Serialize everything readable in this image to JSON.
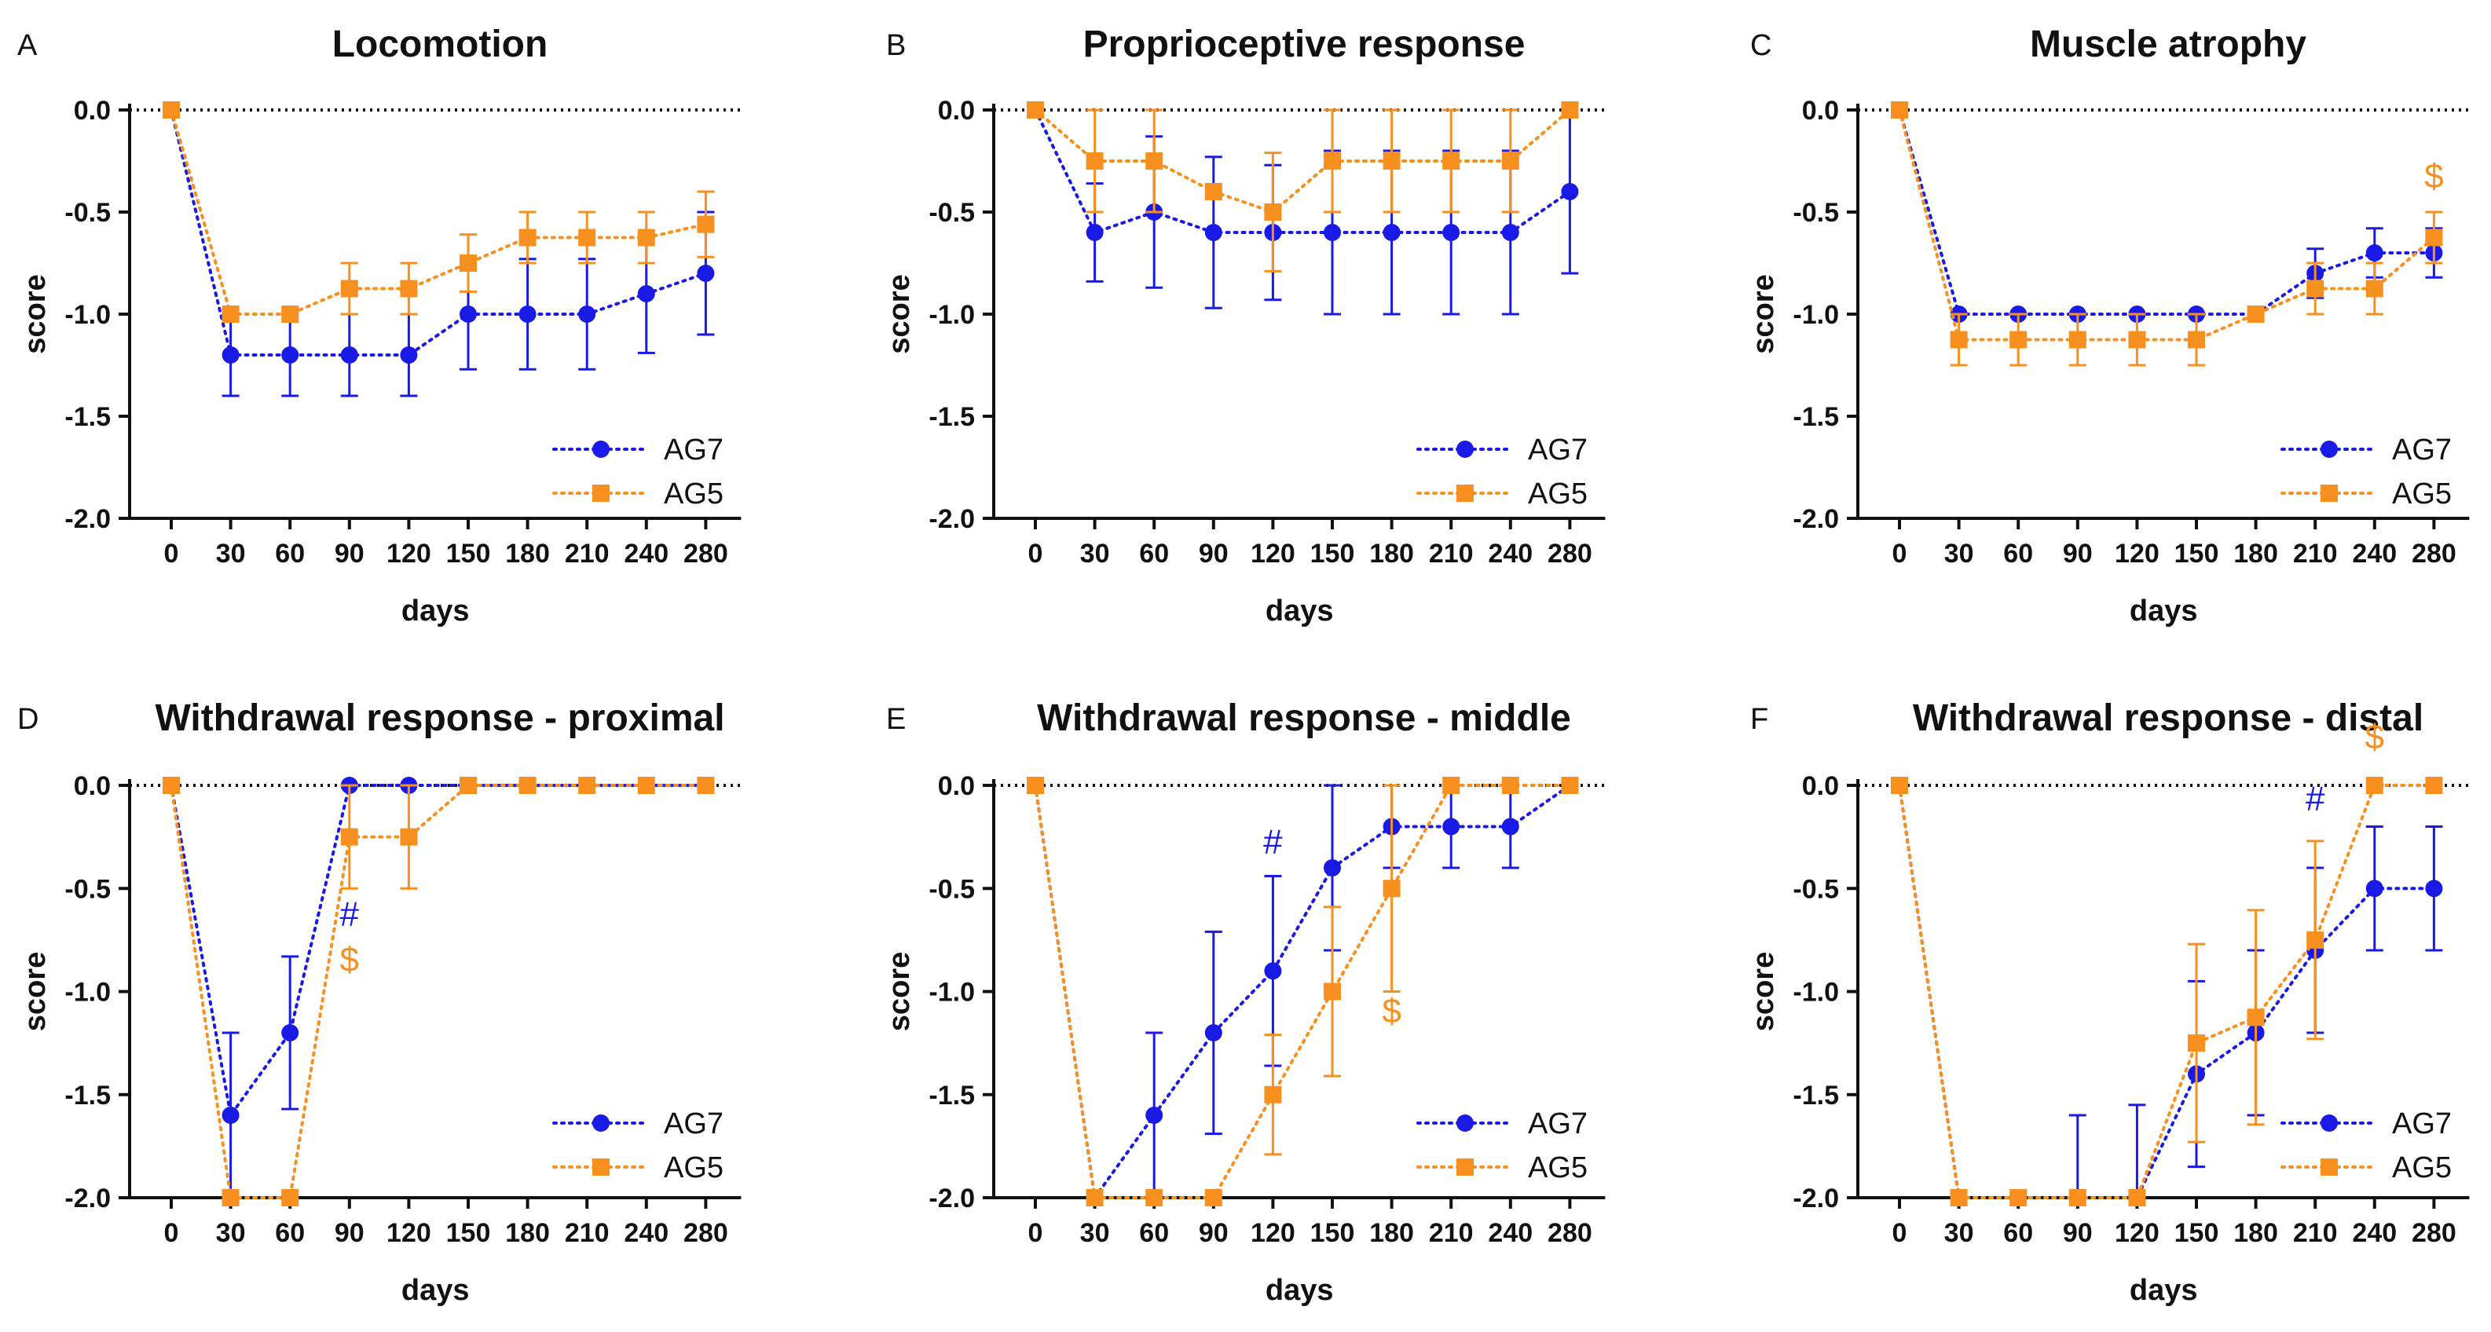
{
  "colors": {
    "AG7": "#1a1ae6",
    "AG5": "#f7901e",
    "axis": "#111111"
  },
  "shared": {
    "x_label": "days",
    "y_label": "score",
    "x_ticks": [
      "0",
      "30",
      "60",
      "90",
      "120",
      "150",
      "180",
      "210",
      "240",
      "280"
    ],
    "y_ticks": [
      0,
      -0.5,
      -1.0,
      -1.5,
      -2.0
    ],
    "y_tick_labels": [
      "0.0",
      "-0.5",
      "-1.0",
      "-1.5",
      "-2.0"
    ],
    "ylim": [
      -2.0,
      0.0
    ]
  },
  "chart_data": [
    {
      "panel": "A",
      "title": "Locomotion",
      "type": "line",
      "xlabel": "days",
      "ylabel": "score",
      "ylim": [
        -2.0,
        0.0
      ],
      "categories": [
        "0",
        "30",
        "60",
        "90",
        "120",
        "150",
        "180",
        "210",
        "240",
        "280"
      ],
      "series": [
        {
          "name": "AG7",
          "values": [
            0,
            -1.2,
            -1.2,
            -1.2,
            -1.2,
            -1.0,
            -1.0,
            -1.0,
            -0.9,
            -0.8
          ],
          "err": [
            0,
            0.2,
            0.2,
            0.2,
            0.2,
            0.27,
            0.27,
            0.27,
            0.29,
            0.3
          ]
        },
        {
          "name": "AG5",
          "values": [
            0,
            -1.0,
            -1.0,
            -0.875,
            -0.875,
            -0.75,
            -0.625,
            -0.625,
            -0.625,
            -0.56
          ],
          "err": [
            0,
            0,
            0,
            0.125,
            0.125,
            0.14,
            0.125,
            0.125,
            0.125,
            0.16
          ]
        }
      ],
      "annotations": []
    },
    {
      "panel": "B",
      "title": "Proprioceptive response",
      "type": "line",
      "xlabel": "days",
      "ylabel": "score",
      "ylim": [
        -2.0,
        0.0
      ],
      "categories": [
        "0",
        "30",
        "60",
        "90",
        "120",
        "150",
        "180",
        "210",
        "240",
        "280"
      ],
      "series": [
        {
          "name": "AG7",
          "values": [
            0,
            -0.6,
            -0.5,
            -0.6,
            -0.6,
            -0.6,
            -0.6,
            -0.6,
            -0.6,
            -0.4
          ],
          "err": [
            0,
            0.24,
            0.37,
            0.37,
            0.33,
            0.4,
            0.4,
            0.4,
            0.4,
            0.4
          ]
        },
        {
          "name": "AG5",
          "values": [
            0,
            -0.25,
            -0.25,
            -0.4,
            -0.5,
            -0.25,
            -0.25,
            -0.25,
            -0.25,
            0
          ],
          "err": [
            0,
            0.25,
            0.25,
            0,
            0.29,
            0.25,
            0.25,
            0.25,
            0.25,
            0
          ]
        }
      ],
      "annotations": []
    },
    {
      "panel": "C",
      "title": "Muscle atrophy",
      "type": "line",
      "xlabel": "days",
      "ylabel": "score",
      "ylim": [
        -2.0,
        0.0
      ],
      "categories": [
        "0",
        "30",
        "60",
        "90",
        "120",
        "150",
        "180",
        "210",
        "240",
        "280"
      ],
      "series": [
        {
          "name": "AG7",
          "values": [
            0,
            -1.0,
            -1.0,
            -1.0,
            -1.0,
            -1.0,
            -1.0,
            -0.8,
            -0.7,
            -0.7
          ],
          "err": [
            0,
            0,
            0,
            0,
            0,
            0,
            0,
            0.12,
            0.12,
            0.12
          ]
        },
        {
          "name": "AG5",
          "values": [
            0,
            -1.125,
            -1.125,
            -1.125,
            -1.125,
            -1.125,
            -1.0,
            -0.875,
            -0.875,
            -0.625
          ],
          "err": [
            0,
            0.125,
            0.125,
            0.125,
            0.125,
            0.125,
            0,
            0.125,
            0.125,
            0.125
          ]
        }
      ],
      "annotations": [
        {
          "text": "$",
          "series": "AG5",
          "category": "280",
          "y": -0.38
        }
      ]
    },
    {
      "panel": "D",
      "title": "Withdrawal response - proximal",
      "type": "line",
      "xlabel": "days",
      "ylabel": "score",
      "ylim": [
        -2.0,
        0.0
      ],
      "categories": [
        "0",
        "30",
        "60",
        "90",
        "120",
        "150",
        "180",
        "210",
        "240",
        "280"
      ],
      "series": [
        {
          "name": "AG7",
          "values": [
            0,
            -1.6,
            -1.2,
            0,
            0,
            0,
            0,
            0,
            0,
            0
          ],
          "err": [
            0,
            0.4,
            0.37,
            0,
            0,
            0,
            0,
            0,
            0,
            0
          ]
        },
        {
          "name": "AG5",
          "values": [
            0,
            -2.0,
            -2.0,
            -0.25,
            -0.25,
            0,
            0,
            0,
            0,
            0
          ],
          "err": [
            0,
            0,
            0,
            0.25,
            0.25,
            0,
            0,
            0,
            0,
            0
          ]
        }
      ],
      "annotations": [
        {
          "text": "#",
          "series": "AG7",
          "category": "90",
          "y": -0.68
        },
        {
          "text": "$",
          "series": "AG5",
          "category": "90",
          "y": -0.9
        }
      ]
    },
    {
      "panel": "E",
      "title": "Withdrawal response - middle",
      "type": "line",
      "xlabel": "days",
      "ylabel": "score",
      "ylim": [
        -2.0,
        0.0
      ],
      "categories": [
        "0",
        "30",
        "60",
        "90",
        "120",
        "150",
        "180",
        "210",
        "240",
        "280"
      ],
      "series": [
        {
          "name": "AG7",
          "values": [
            0,
            -2.0,
            -1.6,
            -1.2,
            -0.9,
            -0.4,
            -0.2,
            -0.2,
            -0.2,
            0
          ],
          "err": [
            0,
            0,
            0.4,
            0.49,
            0.46,
            0.4,
            0.2,
            0.2,
            0.2,
            0
          ]
        },
        {
          "name": "AG5",
          "values": [
            0,
            -2.0,
            -2.0,
            -2.0,
            -1.5,
            -1.0,
            -0.5,
            0,
            0,
            0
          ],
          "err": [
            0,
            0,
            0,
            0,
            0.29,
            0.41,
            0.5,
            0,
            0,
            0
          ]
        }
      ],
      "annotations": [
        {
          "text": "#",
          "series": "AG7",
          "category": "120",
          "y": -0.33
        },
        {
          "text": "$",
          "series": "AG5",
          "category": "180",
          "y": -1.15
        }
      ]
    },
    {
      "panel": "F",
      "title": "Withdrawal response - distal",
      "type": "line",
      "xlabel": "days",
      "ylabel": "score",
      "ylim": [
        -2.0,
        0.0
      ],
      "categories": [
        "0",
        "30",
        "60",
        "90",
        "120",
        "150",
        "180",
        "210",
        "240",
        "280"
      ],
      "series": [
        {
          "name": "AG7",
          "values": [
            0,
            -2.0,
            -2.0,
            -2.0,
            -2.0,
            -1.4,
            -1.2,
            -0.8,
            -0.5,
            -0.5
          ],
          "err": [
            0,
            0,
            0,
            0.4,
            0.45,
            0.45,
            0.4,
            0.4,
            0.3,
            0.3
          ]
        },
        {
          "name": "AG5",
          "values": [
            0,
            -2.0,
            -2.0,
            -2.0,
            -2.0,
            -1.25,
            -1.125,
            -0.75,
            0,
            0
          ],
          "err": [
            0,
            0,
            0,
            0,
            0,
            0.48,
            0.52,
            0.48,
            0,
            0
          ]
        }
      ],
      "annotations": [
        {
          "text": "#",
          "series": "AG7",
          "category": "210",
          "y": -0.12
        },
        {
          "text": "$",
          "series": "AG5",
          "category": "240",
          "y": 0.18
        }
      ]
    }
  ]
}
